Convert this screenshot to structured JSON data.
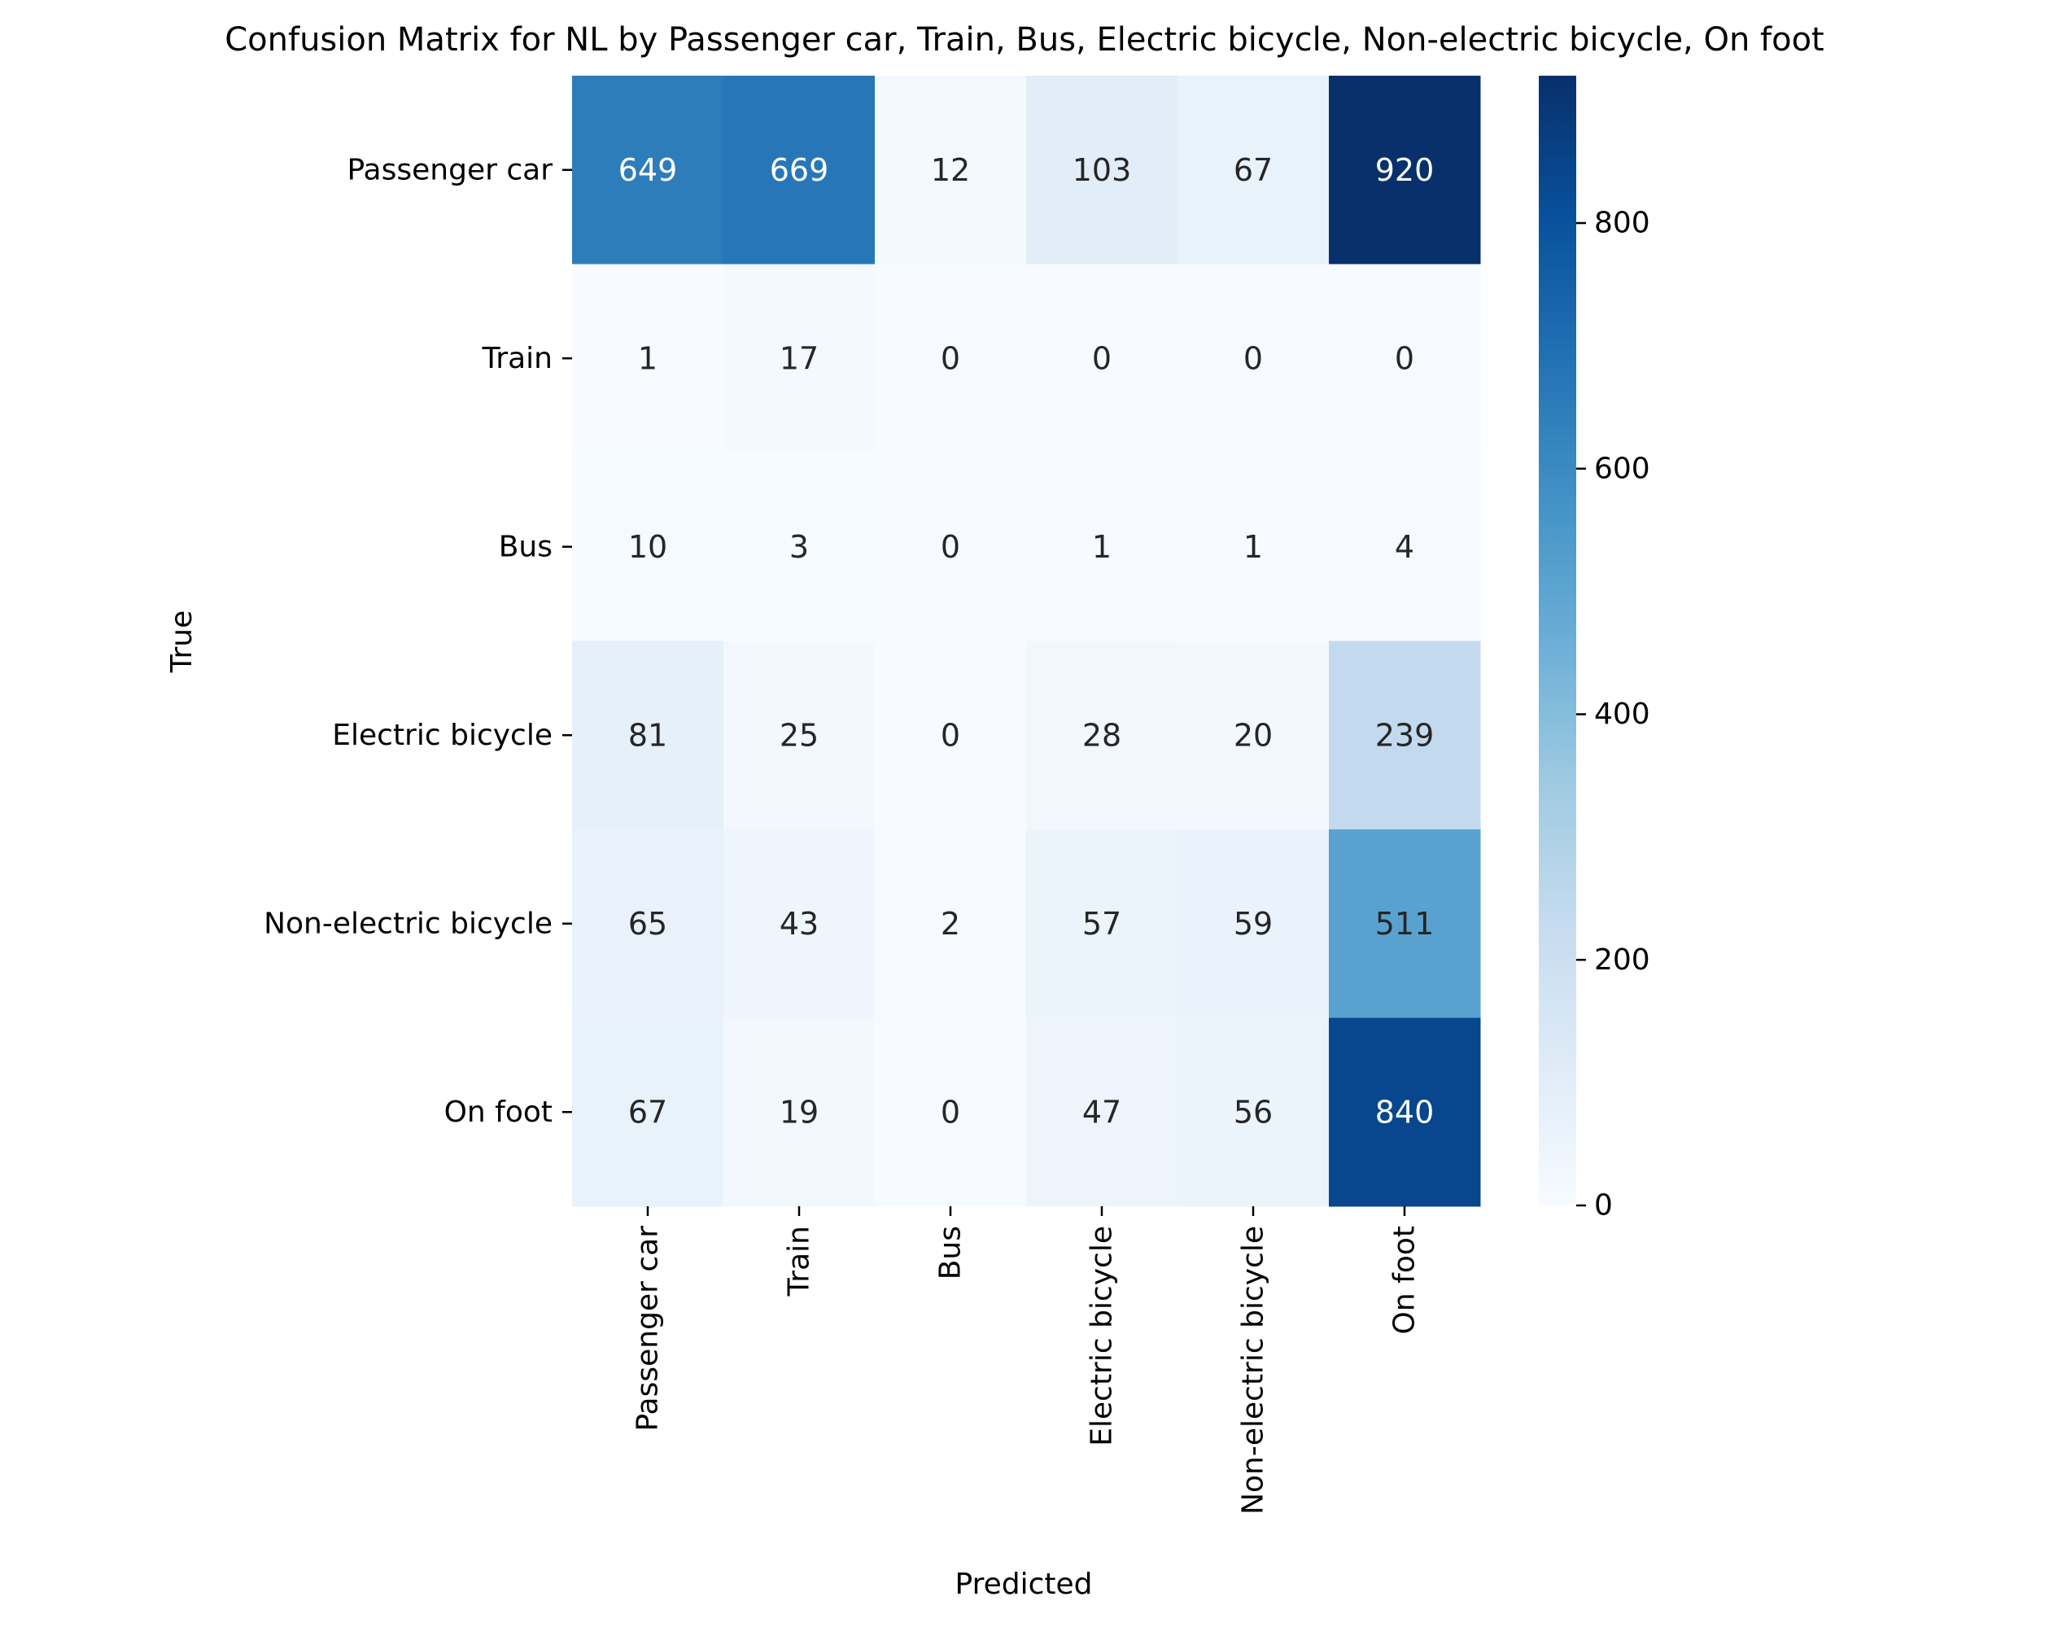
{
  "chart_data": {
    "type": "heatmap",
    "title": "Confusion Matrix for NL by Passenger car, Train, Bus, Electric bicycle, Non-electric bicycle, On foot",
    "xlabel": "Predicted",
    "ylabel": "True",
    "x_categories": [
      "Passenger car",
      "Train",
      "Bus",
      "Electric bicycle",
      "Non-electric bicycle",
      "On foot"
    ],
    "y_categories": [
      "Passenger car",
      "Train",
      "Bus",
      "Electric bicycle",
      "Non-electric bicycle",
      "On foot"
    ],
    "values": [
      [
        649,
        669,
        12,
        103,
        67,
        920
      ],
      [
        1,
        17,
        0,
        0,
        0,
        0
      ],
      [
        10,
        3,
        0,
        1,
        1,
        4
      ],
      [
        81,
        25,
        0,
        28,
        20,
        239
      ],
      [
        65,
        43,
        2,
        57,
        59,
        511
      ],
      [
        67,
        19,
        0,
        47,
        56,
        840
      ]
    ],
    "colormap": "Blues",
    "color_range": [
      0,
      920
    ],
    "colorbar_ticks": [
      0,
      200,
      400,
      600,
      800
    ],
    "colors": {
      "low": "#f7fbff",
      "high": "#08306b",
      "dark_text": "#262626",
      "light_text": "#ffffff"
    }
  }
}
